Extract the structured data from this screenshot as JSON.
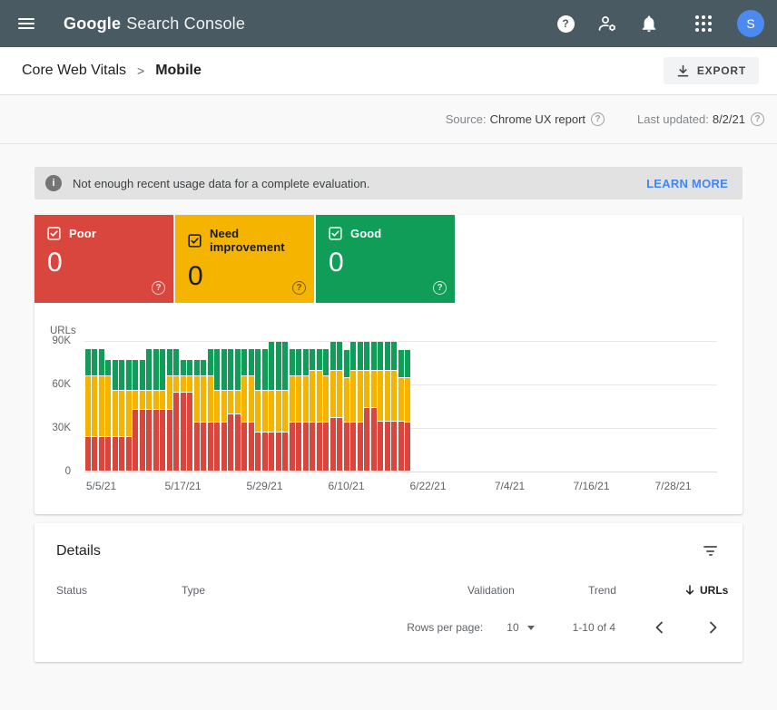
{
  "colors": {
    "appbar_bg": "#4a5a62",
    "page_bg": "#f9f9f9",
    "banner_bg": "#e2e2e2",
    "link_blue": "#4285f4",
    "avatar_bg": "#4d8af0",
    "poor_red": "#d8463d",
    "improve_yellow": "#f4b400",
    "good_green": "#0f9d58"
  },
  "icons": [
    "menu-icon",
    "help-icon",
    "user-settings-icon",
    "notifications-icon",
    "apps-grid-icon",
    "download-icon",
    "info-icon",
    "checkbox-checked-icon",
    "question-circle-icon",
    "filter-list-icon",
    "sort-desc-icon",
    "dropdown-caret-icon",
    "chevron-left-icon",
    "chevron-right-icon"
  ],
  "header": {
    "product": "Google",
    "product_suffix": "Search Console",
    "avatar_initial": "S"
  },
  "breadcrumb": {
    "parent": "Core Web Vitals",
    "separator": ">",
    "current": "Mobile",
    "export_label": "EXPORT"
  },
  "meta": {
    "source_label": "Source:",
    "source_value": "Chrome UX report",
    "updated_label": "Last updated:",
    "updated_value": "8/2/21"
  },
  "banner": {
    "message": "Not enough recent usage data for a complete evaluation.",
    "action": "LEARN MORE"
  },
  "summary_cards": [
    {
      "label": "Poor",
      "count": "0",
      "color": "#d8463d",
      "text_color": "#ffffff",
      "style": "light"
    },
    {
      "label": "Need improvement",
      "count": "0",
      "color": "#f4b400",
      "text_color": "#1b1b1b",
      "style": "dark"
    },
    {
      "label": "Good",
      "count": "0",
      "color": "#0f9d58",
      "text_color": "#ffffff",
      "style": "light"
    }
  ],
  "chart_data": {
    "type": "bar",
    "stacked": true,
    "ylabel": "URLs",
    "y_unit": "K (thousands of URLs)",
    "ylim": [
      0,
      90
    ],
    "y_ticks": [
      "90K",
      "60K",
      "30K",
      "0"
    ],
    "x_ticks": [
      "5/5/21",
      "5/17/21",
      "5/29/21",
      "6/10/21",
      "6/22/21",
      "7/4/21",
      "7/16/21",
      "7/28/21"
    ],
    "start_date": "5/3/21",
    "grid": true,
    "legend_position": "none",
    "dates": [
      "5/3/21",
      "5/4/21",
      "5/5/21",
      "5/6/21",
      "5/7/21",
      "5/8/21",
      "5/9/21",
      "5/10/21",
      "5/11/21",
      "5/12/21",
      "5/13/21",
      "5/14/21",
      "5/15/21",
      "5/16/21",
      "5/17/21",
      "5/18/21",
      "5/19/21",
      "5/20/21",
      "5/21/21",
      "5/22/21",
      "5/23/21",
      "5/24/21",
      "5/25/21",
      "5/26/21",
      "5/27/21",
      "5/28/21",
      "5/29/21",
      "5/30/21",
      "5/31/21",
      "6/1/21",
      "6/2/21",
      "6/3/21",
      "6/4/21",
      "6/5/21",
      "6/6/21",
      "6/7/21",
      "6/8/21",
      "6/9/21",
      "6/10/21",
      "6/11/21",
      "6/12/21",
      "6/13/21",
      "6/14/21",
      "6/15/21",
      "6/16/21",
      "6/17/21",
      "6/18/21",
      "6/19/21"
    ],
    "series": [
      {
        "name": "Poor",
        "color": "#d8463d",
        "values": [
          23,
          23,
          23,
          23,
          23,
          23,
          23,
          42,
          42,
          42,
          42,
          42,
          42,
          54,
          54,
          54,
          33,
          33,
          33,
          33,
          33,
          39,
          39,
          33,
          33,
          26,
          26,
          26,
          26,
          26,
          33,
          33,
          33,
          33,
          33,
          33,
          36,
          36,
          33,
          33,
          33,
          43,
          43,
          34,
          34,
          34,
          34,
          33
        ]
      },
      {
        "name": "Need improvement",
        "color": "#f4b400",
        "values": [
          42,
          42,
          42,
          42,
          32,
          32,
          32,
          13,
          13,
          13,
          13,
          13,
          23,
          11,
          11,
          11,
          32,
          32,
          32,
          22,
          22,
          16,
          16,
          32,
          32,
          29,
          29,
          29,
          29,
          29,
          32,
          32,
          32,
          36,
          36,
          32,
          33,
          33,
          31,
          36,
          36,
          26,
          26,
          35,
          35,
          35,
          30,
          31
        ]
      },
      {
        "name": "Good",
        "color": "#0f9d58",
        "values": [
          19,
          19,
          19,
          11,
          21,
          21,
          21,
          21,
          21,
          29,
          29,
          29,
          19,
          19,
          11,
          11,
          11,
          11,
          19,
          29,
          29,
          29,
          29,
          19,
          19,
          29,
          29,
          34,
          34,
          34,
          19,
          19,
          19,
          15,
          15,
          19,
          20,
          20,
          19,
          20,
          20,
          20,
          20,
          20,
          20,
          20,
          19,
          19
        ]
      }
    ]
  },
  "details": {
    "title": "Details",
    "columns": [
      "Status",
      "Type",
      "Validation",
      "Trend",
      "URLs"
    ],
    "sort_column": "URLs",
    "rows": [],
    "pagination": {
      "rows_per_page_label": "Rows per page:",
      "rows_per_page": "10",
      "range": "1-10 of 4"
    }
  }
}
